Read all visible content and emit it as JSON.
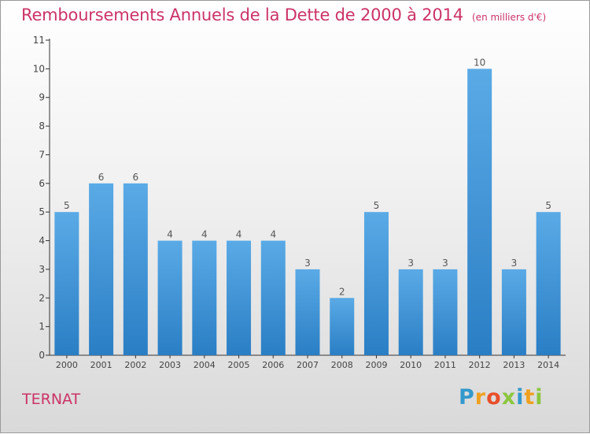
{
  "chart_data": {
    "type": "bar",
    "title": "Remboursements Annuels de la Dette de 2000 à 2014",
    "subtitle": "(en milliers d'€)",
    "categories": [
      "2000",
      "2001",
      "2002",
      "2003",
      "2004",
      "2005",
      "2006",
      "2007",
      "2008",
      "2009",
      "2010",
      "2011",
      "2012",
      "2013",
      "2014"
    ],
    "values": [
      5,
      6,
      6,
      4,
      4,
      4,
      4,
      3,
      2,
      5,
      3,
      3,
      10,
      3,
      5
    ],
    "ylim": [
      0,
      11
    ],
    "yticks": [
      "0",
      "1",
      "2",
      "3",
      "4",
      "5",
      "6",
      "7",
      "8",
      "9",
      "10",
      "11"
    ],
    "xlabel": "",
    "ylabel": "",
    "bar_color": "#5aaae6",
    "bar_color_dark": "#2a7ec4",
    "label_color": "#555555"
  },
  "commune": "TERNAT",
  "logo": {
    "letters": [
      "P",
      "r",
      "o",
      "x",
      "i",
      "t",
      "i"
    ],
    "colors": [
      "#3399cc",
      "#f0a020",
      "#e8502a",
      "#8cc63f",
      "#3399cc",
      "#f0a020",
      "#8cc63f"
    ]
  }
}
